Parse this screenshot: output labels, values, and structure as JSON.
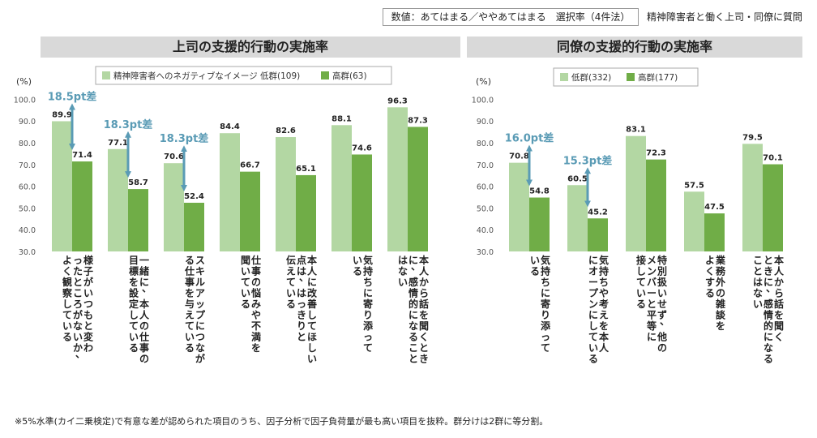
{
  "header": {
    "legend_note": "数値：あてはまる／ややあてはまる　選択率（4件法）",
    "subject": "精神障害者と働く上司・同僚に質問"
  },
  "footnote": "※5%水準(カイ二乗検定)で有意な差が認められた項目のうち、因子分析で因子負荷量が最も高い項目を抜粋。群分けは2群に等分割。",
  "colors": {
    "low": "#b3d7a3",
    "high": "#70ad47",
    "arrow": "#5a9bb5",
    "banner": "#d9d9d9"
  },
  "chart_data": [
    {
      "type": "bar",
      "title": "上司の支援的行動の実施率",
      "ylabel": "(%)",
      "ylim": [
        30,
        100
      ],
      "yticks": [
        "30.0",
        "40.0",
        "50.0",
        "60.0",
        "70.0",
        "80.0",
        "90.0",
        "100.0"
      ],
      "legend": [
        "精神障害者へのネガティブなイメージ  低群(109)",
        "高群(63)"
      ],
      "categories": [
        [
          "様子がいつもと変わ",
          "ったところがないか、",
          "よく観察している"
        ],
        [
          "一緒に、本人の仕事の",
          "目標を設定している"
        ],
        [
          "スキルアップにつなが",
          "る仕事を与えている"
        ],
        [
          "仕事の悩みや不満を",
          "聞いている"
        ],
        [
          "本人に改善してほしい",
          "点は、はっきりと",
          "伝えている"
        ],
        [
          "気持ちに寄り添って",
          "いる"
        ],
        [
          "本人から話を聞くとき",
          "に、感情的になること",
          "はない"
        ]
      ],
      "series": [
        {
          "name": "低群",
          "values": [
            89.9,
            77.1,
            70.6,
            84.4,
            82.6,
            88.1,
            96.3
          ],
          "labels": [
            "89.9",
            "77.1",
            "70.6",
            "84.4",
            "82.6",
            "88.1",
            "96.3"
          ]
        },
        {
          "name": "高群",
          "values": [
            71.4,
            58.7,
            52.4,
            66.7,
            65.1,
            74.6,
            87.3
          ],
          "labels": [
            "71.4",
            "58.7",
            "52.4",
            "66.7",
            "65.1",
            "74.6",
            "87.3"
          ]
        }
      ],
      "annotations": [
        {
          "category_index": 0,
          "text": "18.5pt差"
        },
        {
          "category_index": 1,
          "text": "18.3pt差"
        },
        {
          "category_index": 2,
          "text": "18.3pt差"
        }
      ]
    },
    {
      "type": "bar",
      "title": "同僚の支援的行動の実施率",
      "ylabel": "(%)",
      "ylim": [
        30,
        100
      ],
      "yticks": [
        "30.0",
        "40.0",
        "50.0",
        "60.0",
        "70.0",
        "80.0",
        "90.0",
        "100.0"
      ],
      "legend": [
        "低群(332)",
        "高群(177)"
      ],
      "categories": [
        [
          "気持ちに寄り添って",
          "いる"
        ],
        [
          "気持ちや考えを本人",
          "にオープンにしている"
        ],
        [
          "特別扱いせず、他の",
          "メンバーと平等に",
          "接している"
        ],
        [
          "業務外の雑談を",
          "よくする"
        ],
        [
          "本人から話を聞く",
          "ときに、感情的になる",
          "ことはない"
        ]
      ],
      "series": [
        {
          "name": "低群",
          "values": [
            70.8,
            60.5,
            83.1,
            57.5,
            79.5
          ],
          "labels": [
            "70.8",
            "60.5",
            "83.1",
            "57.5",
            "79.5"
          ]
        },
        {
          "name": "高群",
          "values": [
            54.8,
            45.2,
            72.3,
            47.5,
            70.1
          ],
          "labels": [
            "54.8",
            "45.2",
            "72.3",
            "47.5",
            "70.1"
          ]
        }
      ],
      "annotations": [
        {
          "category_index": 0,
          "text": "16.0pt差"
        },
        {
          "category_index": 1,
          "text": "15.3pt差"
        }
      ]
    }
  ]
}
